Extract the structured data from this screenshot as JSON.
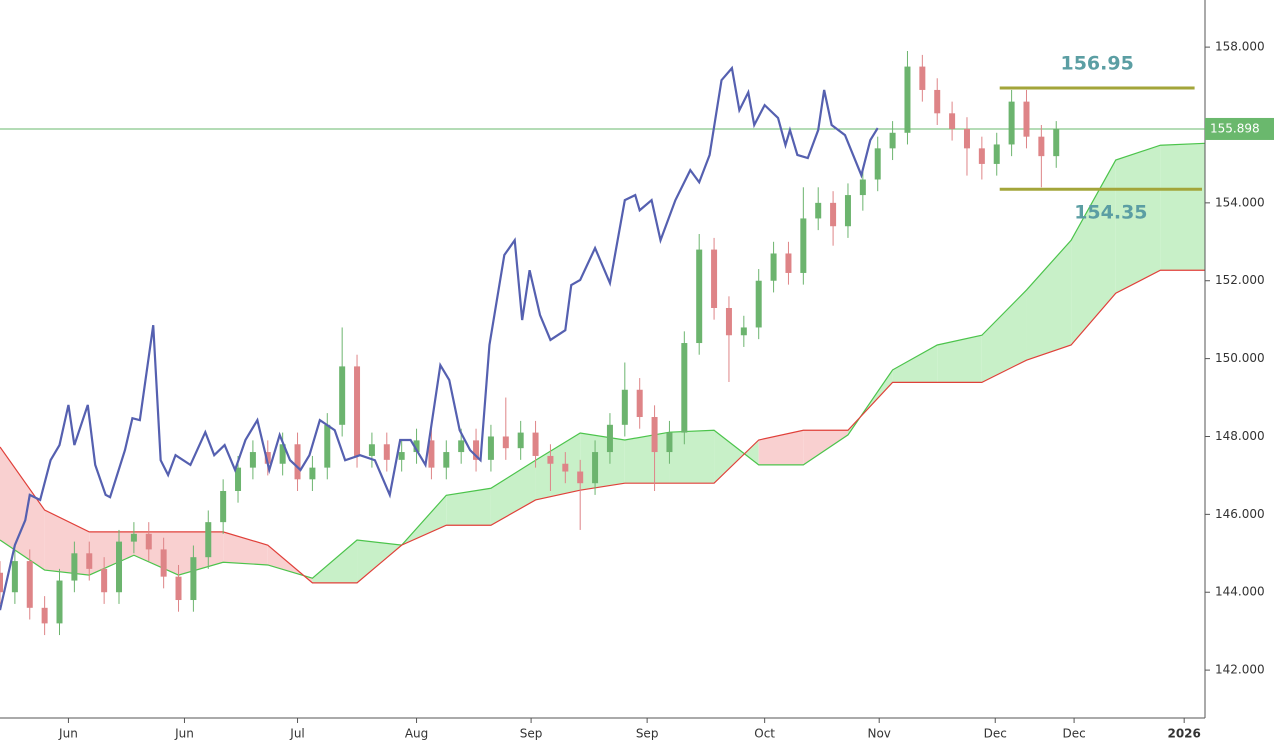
{
  "chart_data": {
    "type": "candlestick",
    "xlim": [
      0,
      81
    ],
    "ylim": [
      140.77,
      159.21
    ],
    "yticks": [
      {
        "value": 142,
        "label": "142.000"
      },
      {
        "value": 144,
        "label": "144.000"
      },
      {
        "value": 146,
        "label": "146.000"
      },
      {
        "value": 148,
        "label": "148.000"
      },
      {
        "value": 150,
        "label": "150.000"
      },
      {
        "value": 152,
        "label": "152.000"
      },
      {
        "value": 154,
        "label": "154.000"
      },
      {
        "value": 156,
        "label": "156.000"
      },
      {
        "value": 158,
        "label": "158.000"
      }
    ],
    "xticks": [
      {
        "value": 4.6,
        "label": "Jun"
      },
      {
        "value": 12.4,
        "label": "Jun"
      },
      {
        "value": 20.0,
        "label": "Jul"
      },
      {
        "value": 28.0,
        "label": "Aug"
      },
      {
        "value": 35.7,
        "label": "Sep"
      },
      {
        "value": 43.5,
        "label": "Sep"
      },
      {
        "value": 51.4,
        "label": "Oct"
      },
      {
        "value": 59.1,
        "label": "Nov"
      },
      {
        "value": 66.9,
        "label": "Dec"
      },
      {
        "value": 72.2,
        "label": "Dec"
      },
      {
        "value": 79.6,
        "label": "2026"
      }
    ],
    "up_color": "#6cb46e",
    "down_color": "#de8487",
    "x": [
      0,
      1,
      2,
      3,
      4,
      5,
      6,
      7,
      8,
      9,
      10,
      11,
      12,
      13,
      14,
      15,
      16,
      17,
      18,
      19,
      20,
      21,
      22,
      23,
      24,
      25,
      26,
      27,
      28,
      29,
      30,
      31,
      32,
      33,
      34,
      35,
      36,
      37,
      38,
      39,
      40,
      41,
      42,
      43,
      44,
      45,
      46,
      47,
      48,
      49,
      50,
      51,
      52,
      53,
      54,
      55,
      56,
      57,
      58,
      59,
      60,
      61,
      62,
      63,
      64,
      65,
      66,
      67,
      68,
      69,
      70,
      71
    ],
    "open": [
      144.5,
      144.0,
      144.8,
      143.6,
      143.2,
      144.3,
      145.0,
      144.6,
      144.0,
      145.3,
      145.5,
      145.1,
      144.4,
      143.8,
      144.9,
      145.8,
      146.6,
      147.2,
      147.6,
      147.3,
      147.8,
      146.9,
      147.2,
      148.3,
      149.8,
      147.5,
      147.8,
      147.4,
      147.6,
      147.9,
      147.2,
      147.6,
      147.9,
      147.4,
      148.0,
      147.7,
      148.1,
      147.5,
      147.3,
      147.1,
      146.8,
      147.6,
      148.3,
      149.2,
      148.5,
      147.6,
      148.1,
      150.4,
      152.8,
      151.3,
      150.6,
      150.8,
      152.0,
      152.7,
      152.2,
      153.6,
      154.0,
      153.4,
      154.2,
      154.6,
      155.4,
      155.8,
      157.5,
      156.9,
      156.3,
      155.9,
      155.4,
      155.0,
      155.5,
      156.6,
      155.7,
      155.2
    ],
    "high": [
      144.8,
      145.1,
      145.1,
      143.9,
      144.6,
      145.3,
      145.3,
      144.9,
      145.6,
      145.8,
      145.8,
      145.4,
      144.7,
      145.2,
      146.1,
      146.9,
      147.5,
      147.9,
      147.9,
      148.1,
      148.1,
      147.5,
      148.6,
      150.8,
      150.1,
      148.1,
      148.1,
      147.9,
      148.2,
      148.2,
      147.9,
      148.2,
      148.2,
      148.3,
      149.0,
      148.4,
      148.4,
      147.8,
      147.6,
      147.4,
      147.9,
      148.6,
      149.9,
      149.5,
      148.8,
      148.4,
      150.7,
      153.2,
      153.1,
      151.6,
      151.1,
      152.3,
      153.0,
      153.0,
      154.4,
      154.4,
      154.3,
      154.5,
      154.9,
      155.7,
      156.1,
      157.9,
      157.8,
      157.2,
      156.6,
      156.2,
      155.7,
      155.8,
      156.9,
      156.9,
      156.0,
      156.1
    ],
    "low": [
      143.7,
      143.7,
      143.3,
      142.9,
      142.9,
      144.0,
      144.3,
      143.7,
      143.7,
      145.0,
      144.8,
      144.1,
      143.5,
      143.5,
      144.6,
      145.5,
      146.3,
      146.9,
      147.0,
      147.0,
      146.6,
      146.6,
      146.9,
      148.0,
      147.2,
      147.2,
      147.1,
      147.1,
      147.3,
      146.9,
      146.9,
      147.3,
      147.1,
      147.1,
      147.4,
      147.4,
      147.2,
      146.6,
      146.8,
      145.6,
      146.5,
      147.3,
      148.0,
      148.2,
      146.6,
      147.3,
      147.8,
      150.1,
      151.0,
      149.4,
      150.3,
      150.5,
      151.7,
      151.9,
      151.9,
      153.3,
      152.9,
      153.1,
      153.8,
      154.3,
      155.1,
      155.5,
      156.6,
      156.0,
      155.6,
      154.7,
      154.6,
      154.7,
      155.2,
      155.4,
      154.4,
      154.9
    ],
    "close": [
      144.0,
      144.8,
      143.6,
      143.2,
      144.3,
      145.0,
      144.6,
      144.0,
      145.3,
      145.5,
      145.1,
      144.4,
      143.8,
      144.9,
      145.8,
      146.6,
      147.2,
      147.6,
      147.3,
      147.8,
      146.9,
      147.2,
      148.3,
      149.8,
      147.5,
      147.8,
      147.4,
      147.6,
      147.9,
      147.2,
      147.6,
      147.9,
      147.4,
      148.0,
      147.7,
      148.1,
      147.5,
      147.3,
      147.1,
      146.8,
      147.6,
      148.3,
      149.2,
      148.5,
      147.6,
      148.1,
      150.4,
      152.8,
      151.3,
      150.6,
      150.8,
      152.0,
      152.7,
      152.2,
      153.6,
      154.0,
      153.4,
      154.2,
      154.6,
      155.4,
      155.8,
      157.5,
      156.9,
      156.3,
      155.9,
      155.4,
      155.0,
      155.5,
      156.6,
      155.7,
      155.2,
      155.9
    ],
    "lagging": {
      "color": "#5560b0",
      "x": [
        0,
        1.0,
        1.7,
        2.0,
        2.7,
        3.4,
        4.0,
        4.6,
        5.0,
        5.9,
        6.4,
        7.1,
        7.4,
        8.4,
        8.9,
        9.4,
        10.3,
        10.8,
        11.3,
        11.8,
        12.8,
        13.8,
        14.4,
        15.1,
        15.8,
        16.5,
        17.3,
        18.1,
        18.8,
        19.5,
        20.2,
        20.8,
        21.5,
        22.5,
        23.2,
        24.2,
        25.2,
        26.2,
        26.9,
        27.6,
        28.6,
        29.6,
        30.2,
        30.9,
        31.6,
        32.3,
        32.9,
        33.9,
        34.6,
        35.1,
        35.6,
        36.3,
        37.0,
        38.0,
        38.4,
        39.0,
        40.0,
        41.0,
        42.0,
        42.7,
        43.0,
        43.8,
        44.4,
        45.4,
        46.4,
        47.0,
        47.7,
        48.5,
        49.2,
        49.7,
        50.3,
        50.7,
        51.4,
        52.3,
        52.8,
        53.1,
        53.6,
        54.3,
        55.0,
        55.4,
        55.9,
        56.8,
        57.9,
        58.5,
        59.0
      ],
      "values": [
        143.54,
        145.21,
        145.85,
        146.5,
        146.37,
        147.39,
        147.78,
        148.81,
        147.78,
        148.81,
        147.27,
        146.5,
        146.44,
        147.65,
        148.47,
        148.42,
        150.86,
        147.39,
        147.01,
        147.52,
        147.27,
        148.11,
        147.52,
        147.78,
        147.14,
        147.91,
        148.42,
        147.14,
        148.04,
        147.39,
        147.14,
        147.52,
        148.42,
        148.16,
        147.39,
        147.52,
        147.39,
        146.5,
        147.91,
        147.91,
        147.27,
        149.83,
        149.45,
        148.16,
        147.65,
        147.39,
        150.35,
        152.66,
        153.04,
        150.99,
        152.27,
        151.12,
        150.48,
        150.73,
        151.89,
        152.02,
        152.84,
        151.94,
        154.07,
        154.2,
        153.81,
        154.07,
        153.04,
        154.07,
        154.84,
        154.53,
        155.23,
        157.15,
        157.46,
        156.38,
        156.84,
        156.0,
        156.51,
        156.18,
        155.48,
        155.87,
        155.23,
        155.15,
        155.87,
        156.9,
        156.0,
        155.74,
        154.71,
        155.61,
        155.92
      ]
    },
    "cloud": {
      "x": [
        0,
        3,
        6,
        9,
        12,
        15,
        18,
        21,
        24,
        27,
        30,
        33,
        36,
        39,
        42,
        45,
        48,
        51,
        54,
        57,
        60,
        63,
        66,
        69,
        72,
        75,
        78,
        81
      ],
      "span_a": {
        "color": "#4cc44c",
        "values": [
          145.34,
          144.57,
          144.44,
          144.95,
          144.44,
          144.77,
          144.7,
          144.36,
          145.34,
          145.21,
          146.49,
          146.67,
          147.39,
          148.09,
          147.91,
          148.11,
          148.16,
          147.27,
          147.27,
          148.04,
          149.71,
          150.35,
          150.6,
          151.76,
          153.04,
          155.1,
          155.48,
          155.53
        ]
      },
      "span_b": {
        "color": "#e0403a",
        "values": [
          147.73,
          146.11,
          145.55,
          145.55,
          145.55,
          145.55,
          145.21,
          144.24,
          144.24,
          145.21,
          145.72,
          145.72,
          146.37,
          146.62,
          146.8,
          146.8,
          146.8,
          147.91,
          148.16,
          148.16,
          149.39,
          149.39,
          149.39,
          149.96,
          150.35,
          151.68,
          152.27,
          152.27
        ]
      },
      "fill_up": "#c8f0c8",
      "fill_down": "#f9d0d0"
    },
    "last_price": {
      "value": 155.898,
      "color": "#6ab86d"
    },
    "levels": {
      "color": "#a3a53a",
      "text_color": "#5b9ea3",
      "items": [
        {
          "value": 156.95,
          "x": [
            67.2,
            80.3
          ]
        },
        {
          "value": 154.35,
          "x": [
            67.2,
            80.8
          ]
        }
      ]
    }
  }
}
